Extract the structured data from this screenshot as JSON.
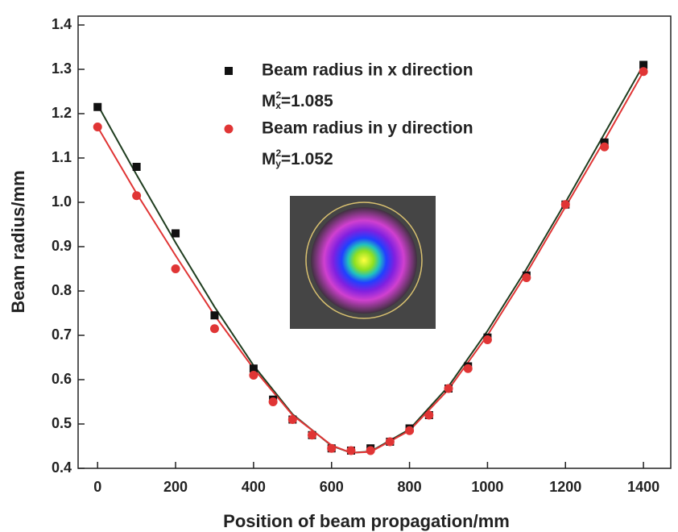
{
  "chart_data": {
    "type": "scatter",
    "x_label": "Position of beam propagation/mm",
    "y_label": "Beam radius/mm",
    "x": [
      0,
      100,
      200,
      300,
      400,
      450,
      500,
      550,
      600,
      650,
      700,
      750,
      800,
      850,
      900,
      950,
      1000,
      1100,
      1200,
      1300,
      1400
    ],
    "fit_x": [
      0,
      100,
      200,
      300,
      400,
      500,
      600,
      650,
      700,
      800,
      900,
      1000,
      1100,
      1200,
      1300,
      1400
    ],
    "series": [
      {
        "name": "Beam radius in x direction",
        "color": "#111111",
        "marker": "square",
        "fit_color": "#1f3d1f",
        "note": {
          "base": "M",
          "sup": "2",
          "sub": "x",
          "text": "=1.085"
        },
        "values": [
          1.215,
          1.08,
          0.93,
          0.745,
          0.625,
          0.555,
          0.51,
          0.475,
          0.445,
          0.44,
          0.445,
          0.46,
          0.49,
          0.52,
          0.58,
          0.63,
          0.695,
          0.835,
          0.995,
          1.135,
          1.31
        ],
        "fit_values": [
          1.22,
          1.062,
          0.909,
          0.764,
          0.632,
          0.522,
          0.451,
          0.435,
          0.438,
          0.488,
          0.585,
          0.71,
          0.85,
          1.0,
          1.155,
          1.31
        ]
      },
      {
        "name": "Beam radius in y direction",
        "color": "#e03535",
        "marker": "circle",
        "fit_color": "#e03535",
        "note": {
          "base": "M",
          "sup": "2",
          "sub": "y",
          "text": "=1.052"
        },
        "values": [
          1.17,
          1.015,
          0.85,
          0.715,
          0.61,
          0.55,
          0.51,
          0.475,
          0.445,
          0.44,
          0.44,
          0.46,
          0.485,
          0.52,
          0.58,
          0.625,
          0.69,
          0.83,
          0.995,
          1.125,
          1.295
        ],
        "fit_values": [
          1.17,
          1.02,
          0.88,
          0.745,
          0.625,
          0.52,
          0.452,
          0.435,
          0.437,
          0.485,
          0.578,
          0.7,
          0.84,
          0.99,
          1.14,
          1.295
        ]
      }
    ],
    "xlim": [
      -50,
      1470
    ],
    "ylim": [
      0.4,
      1.42
    ],
    "xticks": [
      0,
      200,
      400,
      600,
      800,
      1000,
      1200,
      1400
    ],
    "yticks": [
      0.4,
      0.5,
      0.6,
      0.7,
      0.8,
      0.9,
      {
        "value": 1,
        "label": "1.0"
      },
      1.1,
      1.2,
      1.3,
      1.4
    ]
  }
}
